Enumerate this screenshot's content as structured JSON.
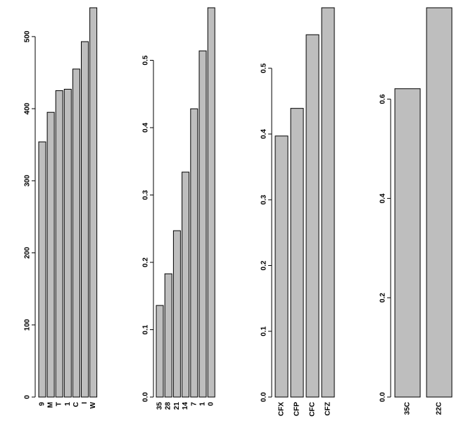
{
  "chart_data": [
    {
      "type": "bar",
      "categories": [
        "9",
        "M",
        "T",
        "1",
        "C",
        "I",
        "W"
      ],
      "values": [
        354,
        395,
        425,
        427,
        455,
        493,
        540
      ],
      "yticks": [
        "0",
        "100",
        "200",
        "300",
        "400",
        "500"
      ],
      "ylim": [
        0,
        540
      ],
      "bar_color": "#bebebe"
    },
    {
      "type": "bar",
      "categories": [
        "35",
        "28",
        "21",
        "14",
        "7",
        "1",
        "0"
      ],
      "values": [
        0.136,
        0.183,
        0.247,
        0.334,
        0.428,
        0.514,
        0.578
      ],
      "yticks": [
        "0.0",
        "0.1",
        "0.2",
        "0.3",
        "0.4",
        "0.5"
      ],
      "ylim": [
        0,
        0.578
      ],
      "bar_color": "#bebebe"
    },
    {
      "type": "bar",
      "categories": [
        "CFX",
        "CFP",
        "CFC",
        "CFZ"
      ],
      "values": [
        0.397,
        0.439,
        0.551,
        0.592
      ],
      "yticks": [
        "0.0",
        "0.1",
        "0.2",
        "0.3",
        "0.4",
        "0.5"
      ],
      "ylim": [
        0,
        0.592
      ],
      "bar_color": "#bebebe"
    },
    {
      "type": "bar",
      "categories": [
        "35C",
        "22C"
      ],
      "values": [
        0.621,
        0.784
      ],
      "yticks": [
        "0.0",
        "0.2",
        "0.4",
        "0.6"
      ],
      "ylim": [
        0,
        0.784
      ],
      "bar_color": "#bebebe"
    }
  ]
}
